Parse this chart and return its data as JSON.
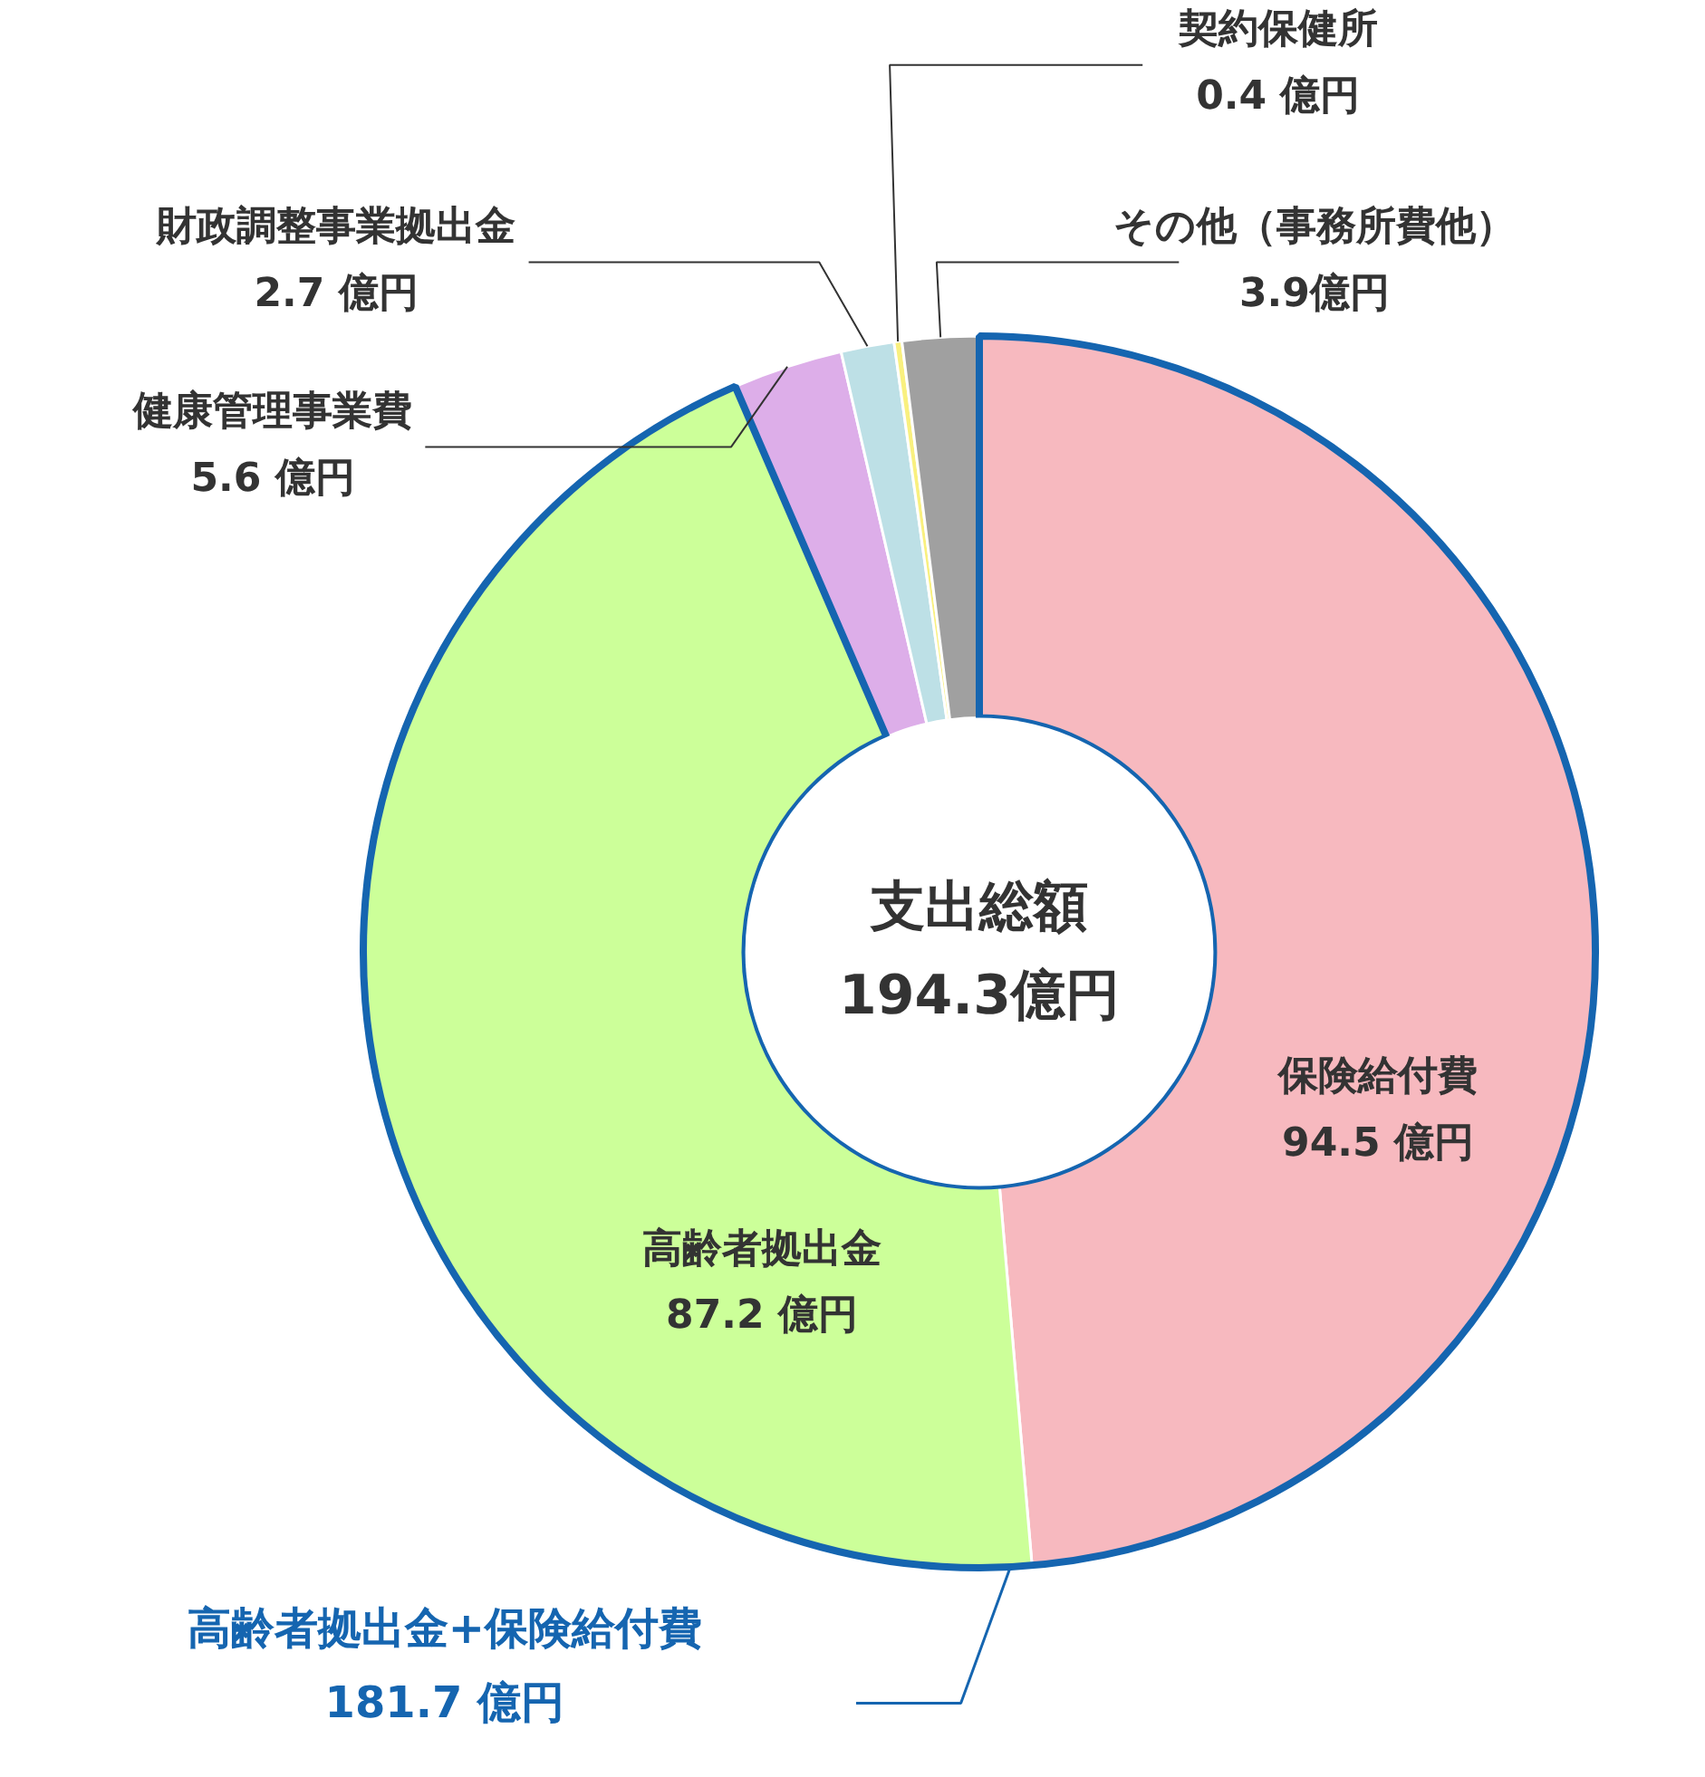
{
  "chart_data": {
    "type": "donut",
    "categories": [
      "保険給付費",
      "高齢者拠出金",
      "健康管理事業費",
      "財政調整事業拠出金",
      "契約保健所",
      "その他（事務所費他）"
    ],
    "values": [
      94.5,
      87.2,
      5.6,
      2.7,
      0.4,
      3.9
    ],
    "colors": [
      "#f7b9bf",
      "#ccff99",
      "#ddaee9",
      "#bde0e6",
      "#f9f07f",
      "#a0a0a0"
    ],
    "value_labels": [
      "94.5 億円",
      "87.2 億円",
      "5.6 億円",
      "2.7 億円",
      "0.4 億円",
      "3.9億円"
    ],
    "annotations": [
      "支出総額",
      "194.3億円",
      "高齢者拠出金+保険給付費\n181.7 億円"
    ]
  }
}
